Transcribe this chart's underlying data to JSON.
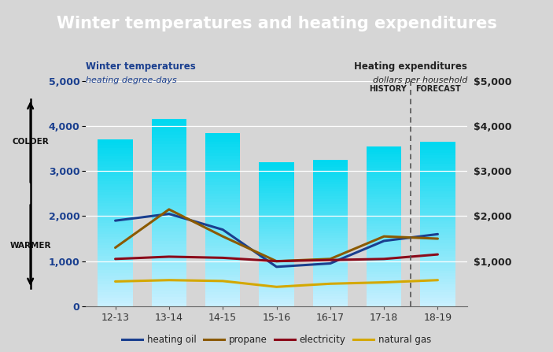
{
  "title": "Winter temperatures and heating expenditures",
  "title_bg_color": "#1e5799",
  "title_text_color": "#ffffff",
  "bg_color": "#d6d6d6",
  "categories": [
    "12-13",
    "13-14",
    "14-15",
    "15-16",
    "16-17",
    "17-18",
    "18-19"
  ],
  "bar_values": [
    3700,
    4150,
    3850,
    3200,
    3250,
    3550,
    3650
  ],
  "ylim": [
    0,
    5000
  ],
  "yticks_left": [
    0,
    1000,
    2000,
    3000,
    4000,
    5000
  ],
  "yticks_right": [
    1000,
    2000,
    3000,
    4000,
    5000
  ],
  "left_axis_label": "Winter temperatures",
  "left_axis_sublabel": "heating degree-days",
  "right_axis_label": "Heating expenditures",
  "right_axis_sublabel": "dollars per household",
  "heating_oil": [
    1900,
    2050,
    1700,
    875,
    950,
    1450,
    1600
  ],
  "propane": [
    1300,
    2150,
    1550,
    1000,
    1050,
    1550,
    1500
  ],
  "electricity": [
    1050,
    1100,
    1075,
    1000,
    1025,
    1050,
    1150
  ],
  "natural_gas": [
    550,
    580,
    560,
    430,
    500,
    530,
    580
  ],
  "heating_oil_color": "#1a3f8f",
  "propane_color": "#8B5a00",
  "electricity_color": "#8b0a1a",
  "natural_gas_color": "#d4a800",
  "colder_label": "COLDER",
  "warmer_label": "WARMER",
  "legend_labels": [
    "heating oil",
    "propane",
    "electricity",
    "natural gas"
  ],
  "history_label": "HISTORY",
  "forecast_label": "FORECAST"
}
